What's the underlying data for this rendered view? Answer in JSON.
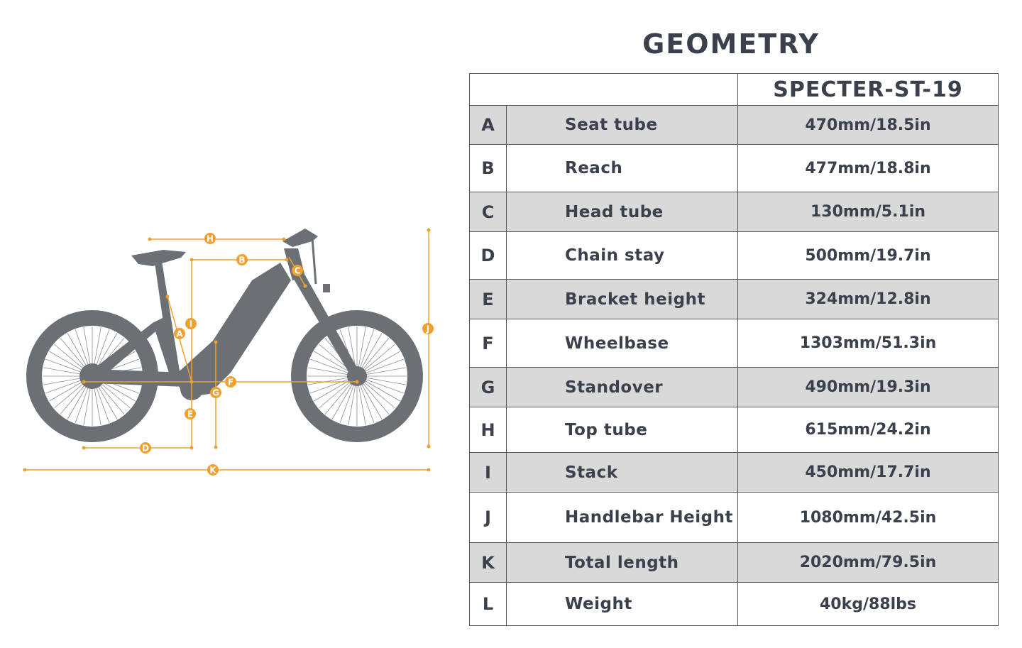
{
  "title": "GEOMETRY",
  "model": "SPECTER-ST-19",
  "rows": [
    {
      "letter": "A",
      "name": "Seat tube",
      "value": "470mm/18.5in"
    },
    {
      "letter": "B",
      "name": "Reach",
      "value": "477mm/18.8in"
    },
    {
      "letter": "C",
      "name": "Head tube",
      "value": "130mm/5.1in"
    },
    {
      "letter": "D",
      "name": "Chain stay",
      "value": "500mm/19.7in"
    },
    {
      "letter": "E",
      "name": "Bracket height",
      "value": "324mm/12.8in"
    },
    {
      "letter": "F",
      "name": "Wheelbase",
      "value": "1303mm/51.3in"
    },
    {
      "letter": "G",
      "name": "Standover",
      "value": "490mm/19.3in"
    },
    {
      "letter": "H",
      "name": "Top tube",
      "value": "615mm/24.2in"
    },
    {
      "letter": "I",
      "name": "Stack",
      "value": "450mm/17.7in"
    },
    {
      "letter": "J",
      "name": "Handlebar Height",
      "value": "1080mm/42.5in"
    },
    {
      "letter": "K",
      "name": "Total length",
      "value": "2020mm/79.5in"
    },
    {
      "letter": "L",
      "name": "Weight",
      "value": "40kg/88lbs"
    }
  ],
  "diagram_labels": [
    "H",
    "B",
    "C",
    "I",
    "A",
    "J",
    "F",
    "G",
    "E",
    "D",
    "K"
  ],
  "colors": {
    "accent": "#f0a030",
    "bike": "#6b7075",
    "text": "#3a414c",
    "row_shade": "#d9d9d9"
  }
}
